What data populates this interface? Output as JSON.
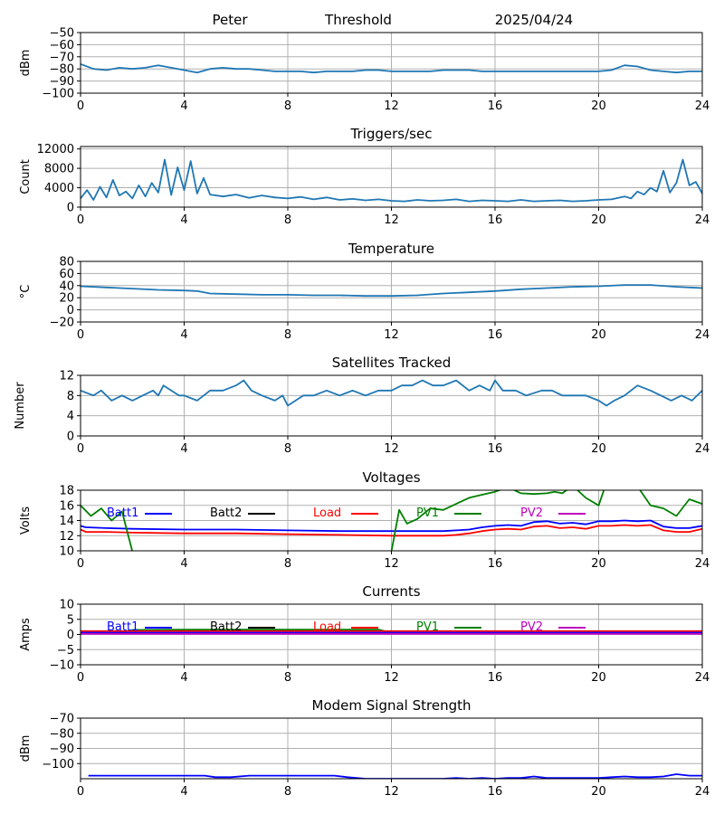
{
  "header": {
    "left": "Peter",
    "center": "Threshold",
    "right": "2025/04/24"
  },
  "colors": {
    "series": "#1f77b4",
    "grid": "#b0b0b0",
    "batt1": "#0000ff",
    "batt2": "#000000",
    "load": "#ff0000",
    "pv1": "#008000",
    "pv2": "#bf00bf"
  },
  "chart_data": [
    {
      "id": "threshold",
      "type": "line",
      "title": "",
      "xlabel": "",
      "ylabel": "dBm",
      "xlim": [
        0,
        24
      ],
      "xticks": [
        0,
        4,
        8,
        12,
        16,
        20,
        24
      ],
      "ylim": [
        -100,
        -50
      ],
      "yticks": [
        -100,
        -90,
        -80,
        -70,
        -60,
        -50
      ],
      "ytick_labels": [
        "−100",
        "−90",
        "−80",
        "−70",
        "−60",
        "−50"
      ],
      "grid": true,
      "series": [
        {
          "color": "#1f77b4",
          "x": [
            0,
            0.5,
            1,
            1.5,
            2,
            2.5,
            3,
            3.5,
            4,
            4.5,
            5,
            5.5,
            6,
            6.5,
            7,
            7.5,
            8,
            8.5,
            9,
            9.5,
            10,
            10.5,
            11,
            11.5,
            12,
            12.5,
            13,
            13.5,
            14,
            14.5,
            15,
            15.5,
            16,
            16.5,
            17,
            17.5,
            18,
            18.5,
            19,
            19.5,
            20,
            20.5,
            21,
            21.5,
            22,
            22.5,
            23,
            23.5,
            24
          ],
          "y": [
            -76,
            -80,
            -81,
            -79,
            -80,
            -79,
            -77,
            -79,
            -81,
            -83,
            -80,
            -79,
            -80,
            -80,
            -81,
            -82,
            -82,
            -82,
            -83,
            -82,
            -82,
            -82,
            -81,
            -81,
            -82,
            -82,
            -82,
            -82,
            -81,
            -81,
            -81,
            -82,
            -82,
            -82,
            -82,
            -82,
            -82,
            -82,
            -82,
            -82,
            -82,
            -81,
            -77,
            -78,
            -81,
            -82,
            -83,
            -82,
            -82
          ]
        }
      ]
    },
    {
      "id": "triggers",
      "type": "line",
      "title": "Triggers/sec",
      "xlabel": "",
      "ylabel": "Count",
      "xlim": [
        0,
        24
      ],
      "xticks": [
        0,
        4,
        8,
        12,
        16,
        20,
        24
      ],
      "ylim": [
        0,
        12500
      ],
      "yticks": [
        0,
        4000,
        8000,
        12000
      ],
      "ytick_labels": [
        "0",
        "4000",
        "8000",
        "12000"
      ],
      "grid": true,
      "series": [
        {
          "color": "#1f77b4",
          "x": [
            0,
            0.25,
            0.5,
            0.75,
            1,
            1.25,
            1.5,
            1.75,
            2,
            2.25,
            2.5,
            2.75,
            3,
            3.25,
            3.5,
            3.75,
            4,
            4.25,
            4.5,
            4.75,
            5,
            5.5,
            6,
            6.5,
            7,
            7.5,
            8,
            8.5,
            9,
            9.5,
            10,
            10.5,
            11,
            11.5,
            12,
            12.5,
            13,
            13.5,
            14,
            14.5,
            15,
            15.5,
            16,
            16.5,
            17,
            17.5,
            18,
            18.5,
            19,
            19.5,
            20,
            20.5,
            21,
            21.25,
            21.5,
            21.75,
            22,
            22.25,
            22.5,
            22.75,
            23,
            23.25,
            23.5,
            23.75,
            24
          ],
          "y": [
            1800,
            3500,
            1500,
            4200,
            2000,
            5600,
            2400,
            3200,
            1800,
            4500,
            2200,
            5000,
            3000,
            9800,
            2500,
            8200,
            3500,
            9500,
            2800,
            6000,
            2600,
            2200,
            2600,
            1900,
            2400,
            2000,
            1800,
            2100,
            1600,
            2000,
            1500,
            1700,
            1400,
            1600,
            1300,
            1200,
            1500,
            1300,
            1400,
            1600,
            1200,
            1400,
            1300,
            1200,
            1500,
            1200,
            1300,
            1400,
            1200,
            1300,
            1500,
            1600,
            2200,
            1800,
            3200,
            2600,
            4000,
            3200,
            7500,
            3000,
            5000,
            9800,
            4500,
            5200,
            2800
          ]
        }
      ]
    },
    {
      "id": "temperature",
      "type": "line",
      "title": "Temperature",
      "xlabel": "",
      "ylabel": "°C",
      "xlim": [
        0,
        24
      ],
      "xticks": [
        0,
        4,
        8,
        12,
        16,
        20,
        24
      ],
      "ylim": [
        -20,
        80
      ],
      "yticks": [
        -20,
        0,
        20,
        40,
        60,
        80
      ],
      "ytick_labels": [
        "−20",
        "0",
        "20",
        "40",
        "60",
        "80"
      ],
      "grid": true,
      "series": [
        {
          "color": "#1f77b4",
          "x": [
            0,
            1,
            2,
            3,
            4,
            4.5,
            5,
            6,
            7,
            8,
            9,
            10,
            11,
            12,
            13,
            14,
            15,
            16,
            17,
            18,
            19,
            20,
            21,
            22,
            23,
            24
          ],
          "y": [
            39,
            37,
            35,
            33,
            32,
            31,
            27,
            26,
            25,
            25,
            24,
            24,
            23,
            23,
            24,
            27,
            29,
            31,
            34,
            36,
            38,
            39,
            41,
            41,
            38,
            36
          ]
        }
      ]
    },
    {
      "id": "satellites",
      "type": "line",
      "title": "Satellites Tracked",
      "xlabel": "",
      "ylabel": "Number",
      "xlim": [
        0,
        24
      ],
      "xticks": [
        0,
        4,
        8,
        12,
        16,
        20,
        24
      ],
      "ylim": [
        0,
        12
      ],
      "yticks": [
        0,
        4,
        8,
        12
      ],
      "ytick_labels": [
        "0",
        "4",
        "8",
        "12"
      ],
      "grid": true,
      "series": [
        {
          "color": "#1f77b4",
          "x": [
            0,
            0.5,
            0.8,
            1.2,
            1.6,
            2,
            2.4,
            2.8,
            3,
            3.2,
            3.5,
            3.8,
            4,
            4.5,
            5,
            5.5,
            6,
            6.3,
            6.6,
            7,
            7.5,
            7.8,
            8,
            8.3,
            8.6,
            9,
            9.5,
            10,
            10.5,
            11,
            11.5,
            12,
            12.4,
            12.8,
            13.2,
            13.6,
            14,
            14.5,
            15,
            15.4,
            15.8,
            16,
            16.3,
            16.8,
            17.2,
            17.8,
            18.2,
            18.6,
            19,
            19.5,
            20,
            20.3,
            20.6,
            21,
            21.5,
            22,
            22.4,
            22.8,
            23.2,
            23.6,
            24
          ],
          "y": [
            9,
            8,
            9,
            7,
            8,
            7,
            8,
            9,
            8,
            10,
            9,
            8,
            8,
            7,
            9,
            9,
            10,
            11,
            9,
            8,
            7,
            8,
            6,
            7,
            8,
            8,
            9,
            8,
            9,
            8,
            9,
            9,
            10,
            10,
            11,
            10,
            10,
            11,
            9,
            10,
            9,
            11,
            9,
            9,
            8,
            9,
            9,
            8,
            8,
            8,
            7,
            6,
            7,
            8,
            10,
            9,
            8,
            7,
            8,
            7,
            9
          ]
        }
      ]
    },
    {
      "id": "voltages",
      "type": "line",
      "title": "Voltages",
      "xlabel": "",
      "ylabel": "Volts",
      "xlim": [
        0,
        24
      ],
      "xticks": [
        0,
        4,
        8,
        12,
        16,
        20,
        24
      ],
      "ylim": [
        10,
        18
      ],
      "yticks": [
        10,
        12,
        14,
        16,
        18
      ],
      "ytick_labels": [
        "10",
        "12",
        "14",
        "16",
        "18"
      ],
      "grid": true,
      "legend": [
        "Batt1",
        "Batt2",
        "Load",
        "PV1",
        "PV2"
      ],
      "series": [
        {
          "name": "Batt1",
          "color": "#0000ff",
          "x": [
            0,
            0.2,
            1,
            2,
            4,
            6,
            8,
            10,
            12,
            13,
            14,
            14.5,
            15,
            15.5,
            16,
            16.5,
            17,
            17.5,
            18,
            18.5,
            19,
            19.5,
            20,
            20.5,
            21,
            21.5,
            22,
            22.5,
            23,
            23.5,
            24
          ],
          "y": [
            13.3,
            13.1,
            13.0,
            12.9,
            12.8,
            12.8,
            12.7,
            12.6,
            12.6,
            12.6,
            12.6,
            12.7,
            12.8,
            13.1,
            13.3,
            13.4,
            13.3,
            13.8,
            13.9,
            13.6,
            13.7,
            13.5,
            13.9,
            13.9,
            14.0,
            13.9,
            14.0,
            13.2,
            13.0,
            13.0,
            13.3
          ]
        },
        {
          "name": "Load",
          "color": "#ff0000",
          "x": [
            0,
            0.2,
            1,
            2,
            4,
            6,
            8,
            10,
            12,
            13,
            14,
            14.5,
            15,
            15.5,
            16,
            16.5,
            17,
            17.5,
            18,
            18.5,
            19,
            19.5,
            20,
            20.5,
            21,
            21.5,
            22,
            22.5,
            23,
            23.5,
            24
          ],
          "y": [
            12.8,
            12.5,
            12.5,
            12.4,
            12.3,
            12.3,
            12.2,
            12.1,
            12.0,
            12.0,
            12.0,
            12.1,
            12.3,
            12.6,
            12.8,
            12.9,
            12.8,
            13.2,
            13.3,
            13.0,
            13.1,
            12.9,
            13.3,
            13.3,
            13.4,
            13.3,
            13.4,
            12.7,
            12.5,
            12.5,
            12.9
          ]
        },
        {
          "name": "PV1",
          "color": "#008000",
          "x": [
            0,
            0.4,
            0.8,
            1.2,
            1.6,
            2.0,
            12.0,
            12.3,
            12.6,
            13,
            13.5,
            14,
            14.5,
            15,
            15.5,
            16,
            16.5,
            17,
            17.5,
            18,
            18.3,
            18.6,
            19,
            19.5,
            20,
            20.3,
            20.6,
            21,
            21.5,
            22,
            22.5,
            23,
            23.5,
            24
          ],
          "y": [
            16.0,
            14.6,
            15.6,
            14.0,
            15.2,
            9.9,
            9.9,
            15.4,
            13.6,
            14.2,
            15.6,
            15.4,
            16.2,
            17.0,
            17.4,
            17.8,
            18.4,
            17.6,
            17.5,
            17.6,
            17.8,
            17.6,
            18.6,
            17.0,
            16.0,
            19.0,
            19.5,
            19.0,
            18.5,
            16.0,
            15.6,
            14.6,
            16.8,
            16.2
          ]
        }
      ]
    },
    {
      "id": "currents",
      "type": "line",
      "title": "Currents",
      "xlabel": "",
      "ylabel": "Amps",
      "xlim": [
        0,
        24
      ],
      "xticks": [
        0,
        4,
        8,
        12,
        16,
        20,
        24
      ],
      "ylim": [
        -10,
        10
      ],
      "yticks": [
        -10,
        -5,
        0,
        5,
        10
      ],
      "ytick_labels": [
        "−10",
        "−5",
        "0",
        "5",
        "10"
      ],
      "grid": true,
      "legend": [
        "Batt1",
        "Batt2",
        "Load",
        "PV1",
        "PV2"
      ],
      "series": [
        {
          "name": "PV1",
          "color": "#008000",
          "x": [
            1.5,
            2,
            4,
            8,
            11.5,
            12
          ],
          "y": [
            0.6,
            1.5,
            1.6,
            1.6,
            1.6,
            0.6
          ]
        },
        {
          "name": "Load",
          "color": "#ff0000",
          "x": [
            0,
            4,
            8,
            12,
            16,
            20,
            24
          ],
          "y": [
            1.1,
            1.1,
            1.1,
            1.1,
            1.1,
            1.1,
            1.1
          ]
        },
        {
          "name": "Batt1",
          "color": "#0000ff",
          "x": [
            0,
            4,
            8,
            12,
            16,
            20,
            24
          ],
          "y": [
            0.6,
            0.6,
            0.6,
            0.6,
            0.6,
            0.6,
            0.6
          ]
        },
        {
          "name": "PV2",
          "color": "#bf00bf",
          "x": [
            0,
            4,
            8,
            12,
            16,
            20,
            24
          ],
          "y": [
            0.2,
            0.2,
            0.2,
            0.2,
            0.2,
            0.2,
            0.2
          ]
        }
      ]
    },
    {
      "id": "modem",
      "type": "line",
      "title": "Modem Signal Strength",
      "xlabel": "",
      "ylabel": "dBm",
      "xlim": [
        0,
        24
      ],
      "xticks": [
        0,
        4,
        8,
        12,
        16,
        20,
        24
      ],
      "ylim": [
        -110,
        -70
      ],
      "yticks": [
        -100,
        -90,
        -80,
        -70
      ],
      "ytick_labels": [
        "−100",
        "−90",
        "−80",
        "−70"
      ],
      "grid": true,
      "series": [
        {
          "color": "#0000ff",
          "x": [
            0.3,
            1,
            2,
            3,
            4,
            4.8,
            5.2,
            5.8,
            6.5,
            7,
            8,
            9,
            9.8,
            10.3,
            11,
            12,
            13,
            14,
            14.5,
            15,
            15.5,
            16,
            16.5,
            17,
            17.5,
            18,
            19,
            20,
            20.5,
            21,
            21.5,
            22,
            22.5,
            23,
            23.5,
            24
          ],
          "y": [
            -108,
            -108,
            -108,
            -108,
            -108,
            -108,
            -109,
            -109,
            -108,
            -108,
            -108,
            -108,
            -108,
            -109,
            -110,
            -110,
            -110,
            -110,
            -109.5,
            -110,
            -109.5,
            -110,
            -109.5,
            -109.5,
            -108.5,
            -109.5,
            -109.5,
            -109.5,
            -109,
            -108.5,
            -109,
            -109,
            -108.5,
            -107,
            -108,
            -108
          ]
        }
      ]
    }
  ]
}
